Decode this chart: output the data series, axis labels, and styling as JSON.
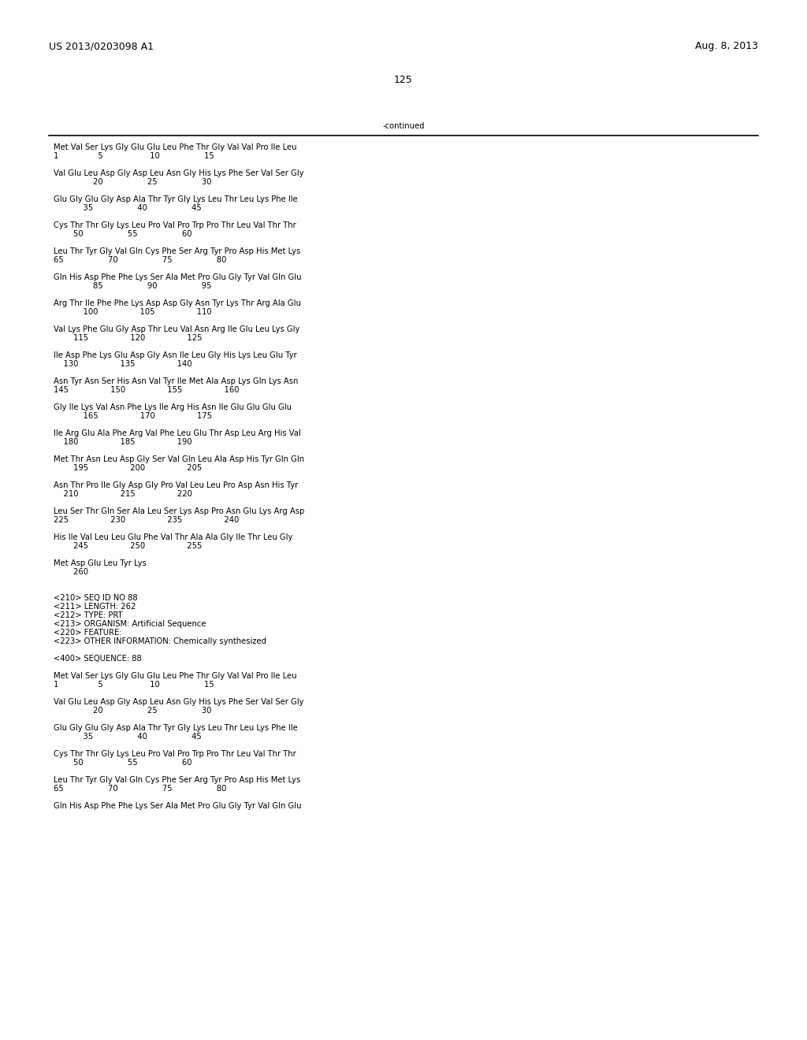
{
  "background_color": "#ffffff",
  "top_left_text": "US 2013/0203098 A1",
  "top_right_text": "Aug. 8, 2013",
  "page_number": "125",
  "continued_text": "-continued",
  "font_size_header": 9.0,
  "font_size_body": 7.2,
  "body_lines": [
    "Met Val Ser Lys Gly Glu Glu Leu Phe Thr Gly Val Val Pro Ile Leu",
    "1                5                   10                  15",
    "",
    "Val Glu Leu Asp Gly Asp Leu Asn Gly His Lys Phe Ser Val Ser Gly",
    "                20                  25                  30",
    "",
    "Glu Gly Glu Gly Asp Ala Thr Tyr Gly Lys Leu Thr Leu Lys Phe Ile",
    "            35                  40                  45",
    "",
    "Cys Thr Thr Gly Lys Leu Pro Val Pro Trp Pro Thr Leu Val Thr Thr",
    "        50                  55                  60",
    "",
    "Leu Thr Tyr Gly Val Gln Cys Phe Ser Arg Tyr Pro Asp His Met Lys",
    "65                  70                  75                  80",
    "",
    "Gln His Asp Phe Phe Lys Ser Ala Met Pro Glu Gly Tyr Val Gln Glu",
    "                85                  90                  95",
    "",
    "Arg Thr Ile Phe Phe Lys Asp Asp Gly Asn Tyr Lys Thr Arg Ala Glu",
    "            100                 105                 110",
    "",
    "Val Lys Phe Glu Gly Asp Thr Leu Val Asn Arg Ile Glu Leu Lys Gly",
    "        115                 120                 125",
    "",
    "Ile Asp Phe Lys Glu Asp Gly Asn Ile Leu Gly His Lys Leu Glu Tyr",
    "    130                 135                 140",
    "",
    "Asn Tyr Asn Ser His Asn Val Tyr Ile Met Ala Asp Lys Gln Lys Asn",
    "145                 150                 155                 160",
    "",
    "Gly Ile Lys Val Asn Phe Lys Ile Arg His Asn Ile Glu Glu Glu Glu",
    "            165                 170                 175",
    "",
    "Ile Arg Glu Ala Phe Arg Val Phe Leu Glu Thr Asp Leu Arg His Val",
    "    180                 185                 190",
    "",
    "Met Thr Asn Leu Asp Gly Ser Val Gln Leu Ala Asp His Tyr Gln Gln",
    "        195                 200                 205",
    "",
    "Asn Thr Pro Ile Gly Asp Gly Pro Val Leu Leu Pro Asp Asn His Tyr",
    "    210                 215                 220",
    "",
    "Leu Ser Thr Gln Ser Ala Leu Ser Lys Asp Pro Asn Glu Lys Arg Asp",
    "225                 230                 235                 240",
    "",
    "His Ile Val Leu Leu Glu Phe Val Thr Ala Ala Gly Ile Thr Leu Gly",
    "        245                 250                 255",
    "",
    "Met Asp Glu Leu Tyr Lys",
    "        260",
    "",
    "",
    "<210> SEQ ID NO 88",
    "<211> LENGTH: 262",
    "<212> TYPE: PRT",
    "<213> ORGANISM: Artificial Sequence",
    "<220> FEATURE:",
    "<223> OTHER INFORMATION: Chemically synthesized",
    "",
    "<400> SEQUENCE: 88",
    "",
    "Met Val Ser Lys Gly Glu Glu Leu Phe Thr Gly Val Val Pro Ile Leu",
    "1                5                   10                  15",
    "",
    "Val Glu Leu Asp Gly Asp Leu Asn Gly His Lys Phe Ser Val Ser Gly",
    "                20                  25                  30",
    "",
    "Glu Gly Glu Gly Asp Ala Thr Tyr Gly Lys Leu Thr Leu Lys Phe Ile",
    "            35                  40                  45",
    "",
    "Cys Thr Thr Gly Lys Leu Pro Val Pro Trp Pro Thr Leu Val Thr Thr",
    "        50                  55                  60",
    "",
    "Leu Thr Tyr Gly Val Gln Cys Phe Ser Arg Tyr Pro Asp His Met Lys",
    "65                  70                  75                  80",
    "",
    "Gln His Asp Phe Phe Lys Ser Ala Met Pro Glu Gly Tyr Val Gln Glu"
  ]
}
